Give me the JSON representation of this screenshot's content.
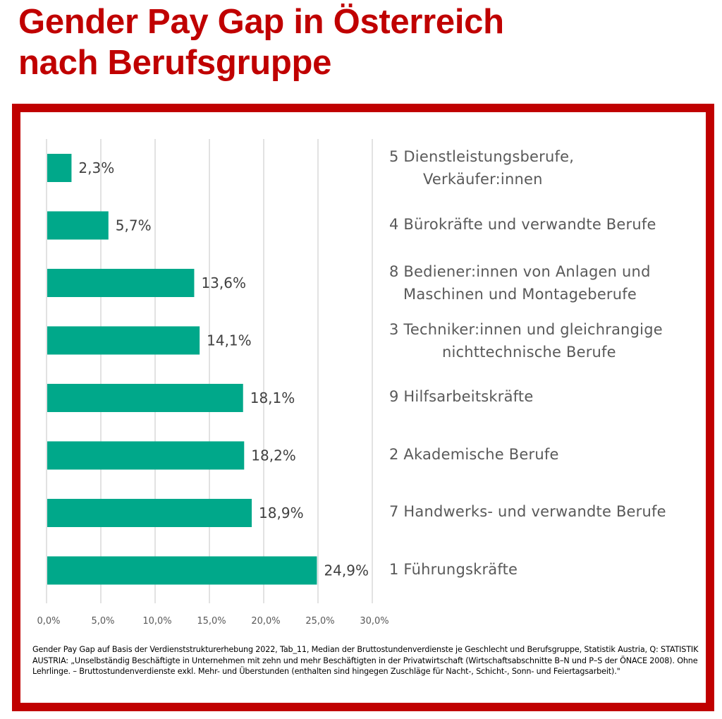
{
  "title": {
    "line1": "Gender Pay Gap in Österreich",
    "line2": "nach Berufsgruppe"
  },
  "colors": {
    "title": "#c00000",
    "frame": "#c00000",
    "bar": "#00a88a",
    "gridline": "#d9d9d9",
    "label_text": "#595959",
    "value_text": "#404040"
  },
  "chart_data": {
    "type": "bar",
    "orientation": "horizontal",
    "title": "Gender Pay Gap in Österreich nach Berufsgruppe",
    "xlabel": "",
    "ylabel": "",
    "xlim": [
      0,
      30
    ],
    "grid": true,
    "x_ticks": [
      0,
      5,
      10,
      15,
      20,
      25,
      30
    ],
    "x_tick_labels": [
      "0,0%",
      "5,0%",
      "10,0%",
      "15,0%",
      "20,0%",
      "25,0%",
      "30,0%"
    ],
    "categories": [
      "5 Dienstleistungsberufe, Verkäufer:innen",
      "4 Bürokräfte und verwandte Berufe",
      "8 Bediener:innen von Anlagen und Maschinen und Montageberufe",
      "3 Techniker:innen und gleichrangige nichttechnische Berufe",
      "9 Hilfsarbeitskräfte",
      "2 Akademische Berufe",
      "7 Handwerks- und verwandte Berufe",
      "1 Führungskräfte"
    ],
    "category_label_lines": [
      [
        "5 Dienstleistungsberufe,",
        "Verkäufer:innen"
      ],
      [
        "4 Bürokräfte und verwandte Berufe"
      ],
      [
        "8 Bediener:innen von Anlagen und",
        "Maschinen und Montageberufe"
      ],
      [
        "3 Techniker:innen und gleichrangige",
        "nichttechnische Berufe"
      ],
      [
        "9 Hilfsarbeitskräfte"
      ],
      [
        "2 Akademische Berufe"
      ],
      [
        "7 Handwerks- und verwandte Berufe"
      ],
      [
        "1 Führungskräfte"
      ]
    ],
    "values": [
      2.3,
      5.7,
      13.6,
      14.1,
      18.1,
      18.2,
      18.9,
      24.9
    ],
    "value_labels": [
      "2,3%",
      "5,7%",
      "13,6%",
      "14,1%",
      "18,1%",
      "18,2%",
      "18,9%",
      "24,9%"
    ],
    "legend": "none"
  },
  "footnote": "Gender Pay Gap auf Basis der Verdienststrukturerhebung 2022, Tab_11, Median der Bruttostundenverdienste je Geschlecht und Berufsgruppe,  Statistik Austria, Q: STATISTIK AUSTRIA: „Unselbständig Beschäftigte in Unternehmen mit zehn und mehr Beschäftigten in der Privatwirtschaft (Wirtschaftsabschnitte B–N und P–S der ÖNACE 2008). Ohne Lehrlinge. – Bruttostundenverdienste exkl. Mehr- und Überstunden (enthalten sind hingegen Zuschläge für Nacht-, Schicht-, Sonn- und Feiertagsarbeit).\""
}
